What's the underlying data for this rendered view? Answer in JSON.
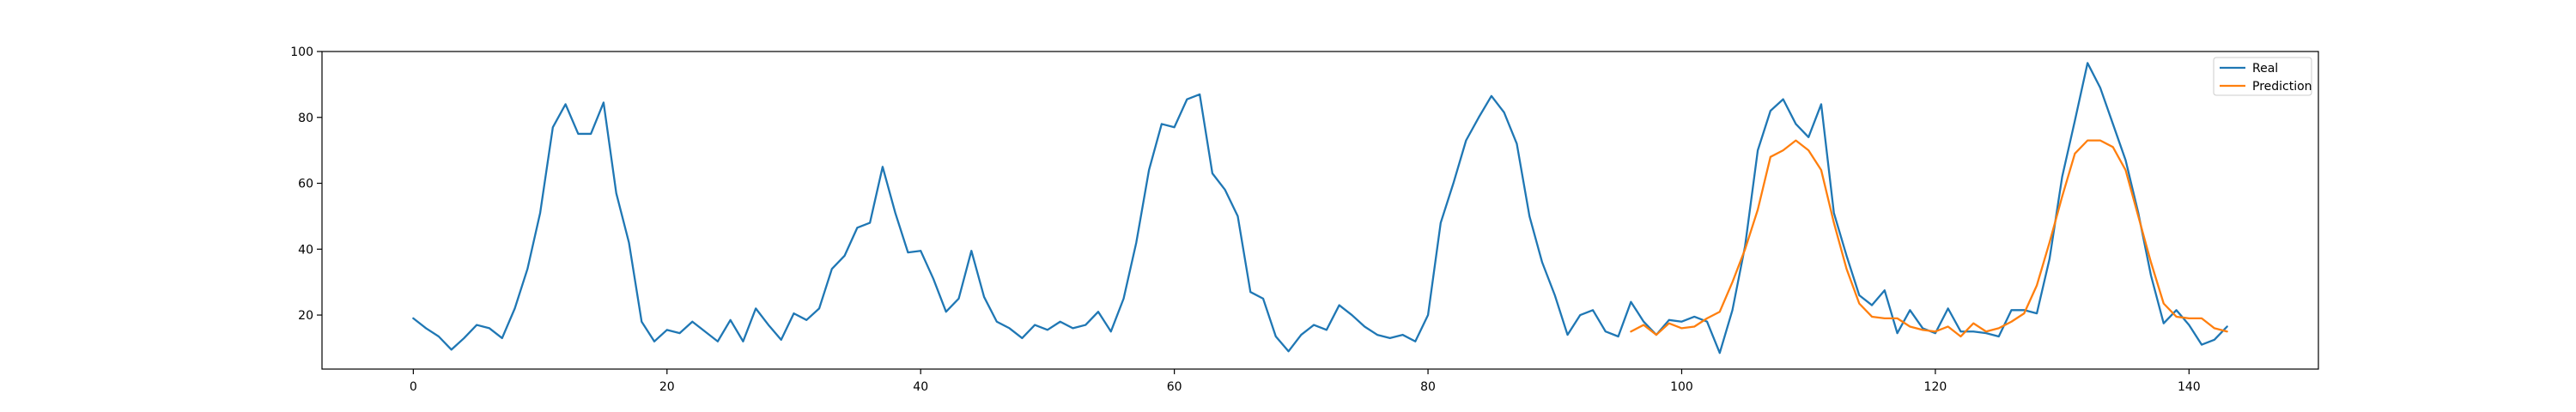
{
  "chart_data": {
    "type": "line",
    "title": "",
    "xlabel": "",
    "ylabel": "",
    "xlim": [
      -7.2,
      150.2
    ],
    "ylim": [
      3.6,
      100
    ],
    "xticks": [
      0,
      20,
      40,
      60,
      80,
      100,
      120,
      140
    ],
    "yticks": [
      20,
      40,
      60,
      80,
      100
    ],
    "grid": false,
    "legend_position": "top-right",
    "series": [
      {
        "name": "Real",
        "color": "#1f77b4",
        "x_start": 0,
        "values": [
          19,
          16,
          13.5,
          9.5,
          13,
          17,
          16,
          13,
          22,
          34,
          51,
          77,
          84,
          75,
          75,
          84.5,
          57,
          42,
          18,
          12,
          15.5,
          14.5,
          18,
          15,
          12,
          18.5,
          12,
          22,
          17,
          12.5,
          20.5,
          18.5,
          22,
          34,
          38,
          46.5,
          48,
          65,
          51,
          39,
          39.5,
          31,
          21,
          25,
          39.5,
          25.5,
          18,
          16,
          13,
          17,
          15.5,
          18,
          16,
          17,
          21,
          15,
          25,
          42,
          64,
          78,
          77,
          85.5,
          87,
          63,
          58,
          50,
          27,
          25,
          13.5,
          9,
          14,
          17,
          15.5,
          23,
          20,
          16.5,
          14,
          13,
          14,
          12,
          20,
          48,
          60,
          73,
          80,
          86.5,
          81.5,
          72,
          50,
          36,
          26,
          14,
          20,
          21.5,
          15,
          13.5,
          24,
          18,
          14,
          18.5,
          18,
          19.5,
          18,
          8.5,
          21.5,
          41,
          70,
          82,
          85.5,
          78,
          74,
          84,
          51,
          38,
          26,
          23,
          27.5,
          14.5,
          21.5,
          16,
          14.5,
          22,
          15,
          15,
          14.5,
          13.5,
          21.5,
          21.5,
          20.5,
          37,
          62,
          79,
          96.5,
          89,
          78,
          67,
          51,
          32,
          17.5,
          21.5,
          17,
          11,
          12.5,
          16.5
        ]
      },
      {
        "name": "Prediction",
        "color": "#ff7f0e",
        "x_start": 96,
        "values": [
          15,
          17,
          14,
          17.5,
          16,
          16.5,
          19,
          21,
          30,
          40,
          52,
          68,
          70,
          73,
          70,
          64,
          48,
          34,
          23.5,
          19.5,
          19,
          19,
          16.5,
          15.5,
          15,
          16.5,
          13.5,
          17.5,
          15,
          16,
          18,
          20.5,
          29,
          42,
          56,
          69,
          73,
          73,
          71,
          64,
          50,
          36,
          23.5,
          19.5,
          19,
          19,
          16,
          15
        ]
      }
    ]
  }
}
